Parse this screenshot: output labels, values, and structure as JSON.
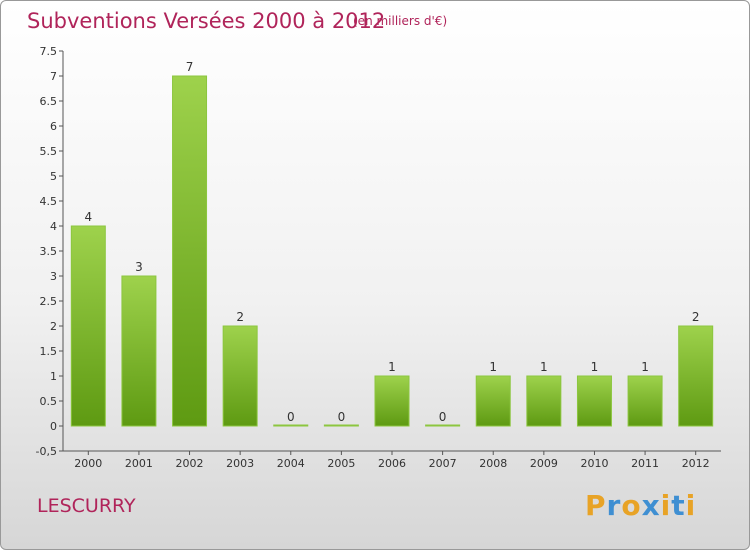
{
  "header": {
    "title": "Subventions Versées 2000 à 2012",
    "unit": "(en milliers d'€)"
  },
  "commune": "LESCURRY",
  "logo": {
    "letters": [
      "P",
      "r",
      "o",
      "x",
      "i",
      "t",
      "i"
    ],
    "colors": [
      "#e8a326",
      "#3f8fd2",
      "#e8a326",
      "#3f8fd2",
      "#e8a326",
      "#3f8fd2",
      "#e8a326"
    ]
  },
  "colors": {
    "accent": "#b0245a",
    "bar_top": "#9ed24c",
    "bar_bottom": "#5e9a12"
  },
  "chart_data": {
    "type": "bar",
    "title": "Subventions Versées 2000 à 2012",
    "subtitle": "(en milliers d'€)",
    "categories": [
      "2000",
      "2001",
      "2002",
      "2003",
      "2004",
      "2005",
      "2006",
      "2007",
      "2008",
      "2009",
      "2010",
      "2011",
      "2012"
    ],
    "values": [
      4,
      3,
      7,
      2,
      0,
      0,
      1,
      0,
      1,
      1,
      1,
      1,
      2
    ],
    "data_labels": [
      "4",
      "3",
      "7",
      "2",
      "0",
      "0",
      "1",
      "0",
      "1",
      "1",
      "1",
      "1",
      "2"
    ],
    "ylim": [
      -0.5,
      7.5
    ],
    "yticks": [
      "-0,5",
      "0",
      "0.5",
      "1",
      "1.5",
      "2",
      "2.5",
      "3",
      "3.5",
      "4",
      "4.5",
      "5",
      "5.5",
      "6",
      "6.5",
      "7",
      "7.5"
    ],
    "ytick_values": [
      -0.5,
      0,
      0.5,
      1,
      1.5,
      2,
      2.5,
      3,
      3.5,
      4,
      4.5,
      5,
      5.5,
      6,
      6.5,
      7,
      7.5
    ],
    "grid": false
  }
}
